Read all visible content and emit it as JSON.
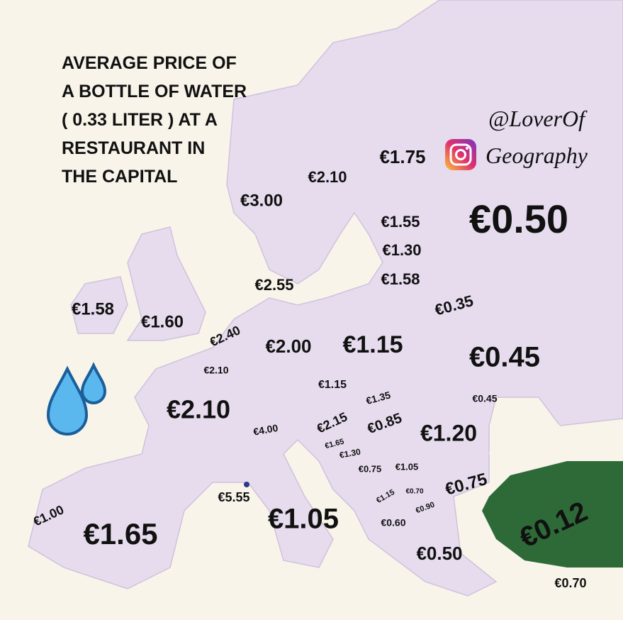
{
  "title": [
    "AVERAGE PRICE OF",
    "A BOTTLE OF WATER",
    "( 0.33 LITER ) AT A",
    "RESTAURANT IN",
    "THE CAPITAL"
  ],
  "handle": [
    "@LoverOf",
    "Geography"
  ],
  "labels": [
    "€1.75",
    "€2.10",
    "€3.00",
    "€1.55",
    "€0.50",
    "€1.30",
    "€1.58",
    "€2.55",
    "€0.35",
    "€1.58",
    "€1.60",
    "€2.40",
    "€2.00",
    "€1.15",
    "€0.45",
    "€2.10",
    "€1.15",
    "€1.35",
    "€0.45",
    "€2.10",
    "€2.15",
    "€0.85",
    "€4.00",
    "€1.20",
    "€1.65",
    "€1.30",
    "€0.75",
    "€1.05",
    "€0.75",
    "€5.55",
    "€1.15",
    "€0.70",
    "€0.90",
    "€1.00",
    "€1.05",
    "€0.12",
    "€0.60",
    "€1.65",
    "€0.50",
    "€0.70"
  ]
}
